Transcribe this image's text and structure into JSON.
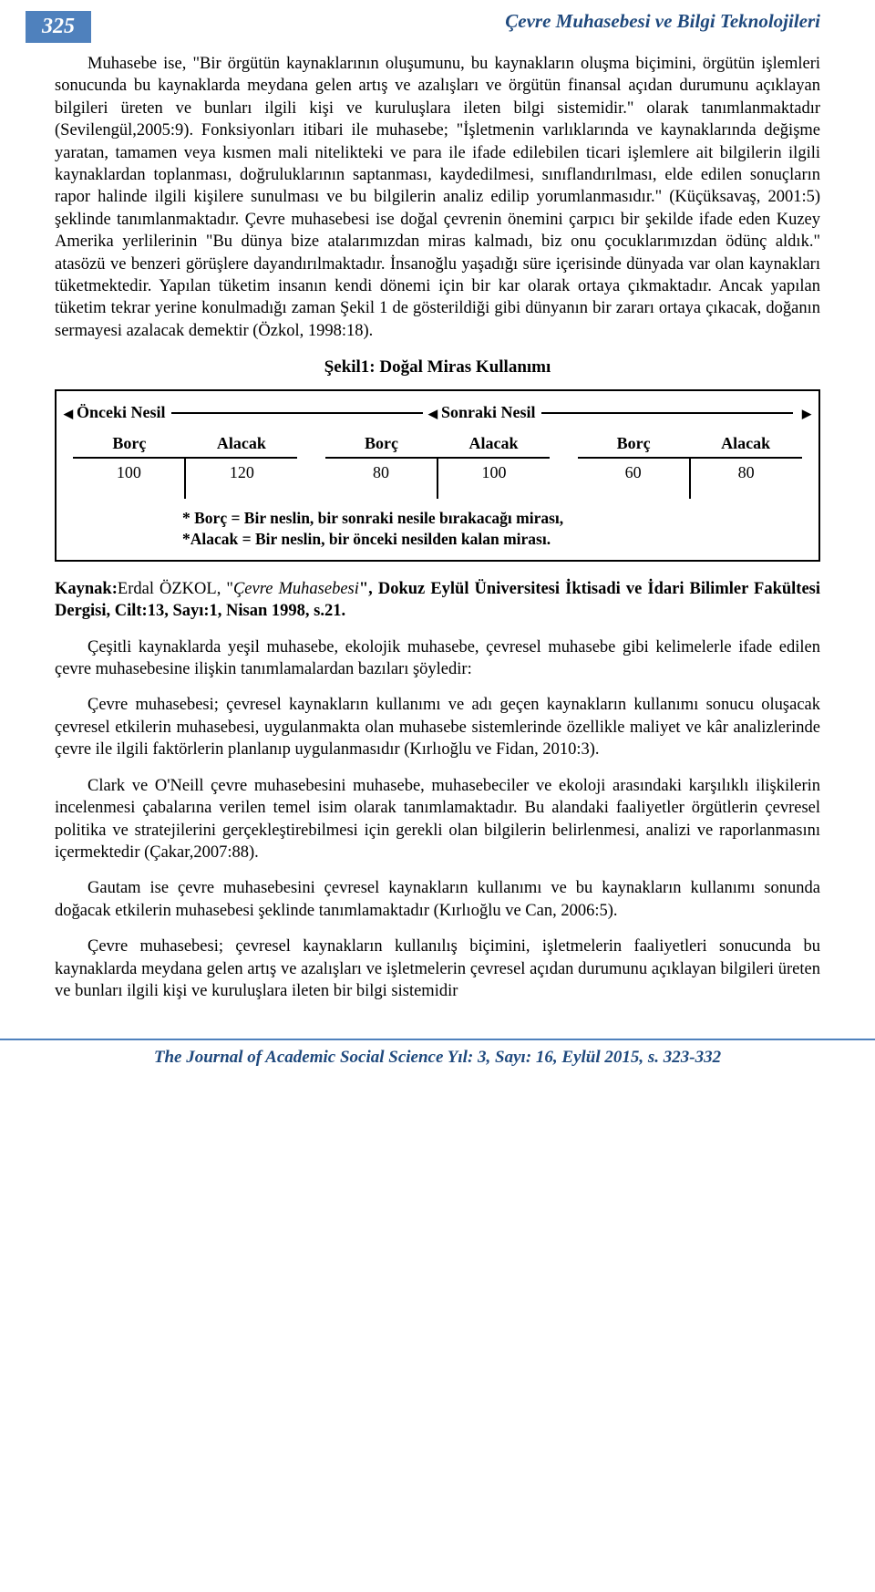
{
  "page_number": "325",
  "running_title": "Çevre Muhasebesi ve Bilgi Teknolojileri",
  "paragraphs": {
    "p1": "Muhasebe ise, \"Bir örgütün kaynaklarının oluşumunu, bu kaynakların oluşma biçimini, örgütün işlemleri sonucunda bu kaynaklarda meydana gelen artış ve azalışları ve örgütün finansal açıdan durumunu açıklayan bilgileri üreten ve bunları ilgili kişi ve kuruluşlara ileten bilgi sistemidir.\" olarak tanımlanmaktadır (Sevilengül,2005:9). Fonksiyonları itibari ile muhasebe; \"İşletmenin varlıklarında ve kaynaklarında değişme yaratan, tamamen veya kısmen mali nitelikteki ve para ile ifade edilebilen ticari işlemlere ait bilgilerin ilgili kaynaklardan toplanması, doğruluklarının saptanması, kaydedilmesi, sınıflandırılması, elde edilen sonuçların rapor halinde ilgili kişilere sunulması ve bu bilgilerin analiz edilip yorumlanmasıdır.\" (Küçüksavaş, 2001:5) şeklinde tanımlanmaktadır. Çevre muhasebesi ise doğal çevrenin önemini çarpıcı bir şekilde ifade eden Kuzey Amerika yerlilerinin \"Bu dünya bize atalarımızdan miras kalmadı, biz onu çocuklarımızdan ödünç aldık.\" atasözü ve benzeri görüşlere dayandırılmaktadır. İnsanoğlu yaşadığı süre içerisinde dünyada var olan kaynakları tüketmektedir. Yapılan tüketim insanın kendi dönemi için bir kar olarak ortaya çıkmaktadır. Ancak yapılan tüketim tekrar yerine konulmadığı zaman Şekil 1 de gösterildiği gibi dünyanın bir zararı ortaya çıkacak, doğanın sermayesi azalacak demektir (Özkol, 1998:18).",
    "p2": "Çeşitli kaynaklarda yeşil muhasebe, ekolojik muhasebe, çevresel muhasebe gibi kelimelerle ifade edilen çevre muhasebesine ilişkin tanımlamalardan bazıları şöyledir:",
    "p3": "Çevre muhasebesi; çevresel kaynakların kullanımı ve adı geçen kaynakların kullanımı sonucu oluşacak çevresel etkilerin muhasebesi, uygulanmakta olan muhasebe sistemlerinde özellikle maliyet ve kâr analizlerinde çevre ile ilgili faktörlerin planlanıp uygulanmasıdır (Kırlıoğlu ve Fidan, 2010:3).",
    "p4": "Clark ve O'Neill çevre muhasebesini muhasebe, muhasebeciler ve ekoloji arasındaki karşılıklı ilişkilerin incelenmesi çabalarına verilen temel isim olarak tanımlamaktadır. Bu alandaki faaliyetler örgütlerin çevresel politika ve stratejilerini gerçekleştirebilmesi için gerekli olan bilgilerin belirlenmesi, analizi ve raporlanmasını içermektedir (Çakar,2007:88).",
    "p5": "Gautam ise çevre muhasebesini çevresel kaynakların kullanımı ve bu kaynakların kullanımı sonunda doğacak etkilerin muhasebesi şeklinde tanımlamaktadır (Kırlıoğlu ve Can, 2006:5).",
    "p6": "Çevre muhasebesi; çevresel kaynakların kullanılış biçimini, işletmelerin faaliyetleri sonucunda bu kaynaklarda meydana gelen artış ve azalışları ve işletmelerin çevresel açıdan durumunu açıklayan bilgileri üreten ve bunları ilgili kişi ve kuruluşlara ileten bir bilgi sistemidir"
  },
  "figure": {
    "title": "Şekil1: Doğal Miras Kullanımı",
    "gen_prev": "Önceki Nesil",
    "gen_next": "Sonraki Nesil",
    "col_borc": "Borç",
    "col_alacak": "Alacak",
    "accounts": [
      {
        "borc": "100",
        "alacak": "120"
      },
      {
        "borc": "80",
        "alacak": "100"
      },
      {
        "borc": "60",
        "alacak": "80"
      }
    ],
    "note1": "* Borç = Bir neslin, bir sonraki nesile bırakacağı mirası,",
    "note2": "*Alacak = Bir neslin, bir önceki nesilden kalan mirası."
  },
  "source": {
    "label": "Kaynak:",
    "author": "Erdal ÖZKOL, \"",
    "work": "Çevre Muhasebesi",
    "rest": "\", Dokuz Eylül Üniversitesi İktisadi ve İdari Bilimler Fakültesi Dergisi, Cilt:13, Sayı:1, Nisan 1998, s.21."
  },
  "footer": "The Journal of Academic Social Science Yıl: 3, Sayı: 16, Eylül 2015, s. 323-332",
  "colors": {
    "accent": "#4f81bd",
    "accent_dark": "#1f497d",
    "text": "#000000",
    "bg": "#ffffff"
  }
}
